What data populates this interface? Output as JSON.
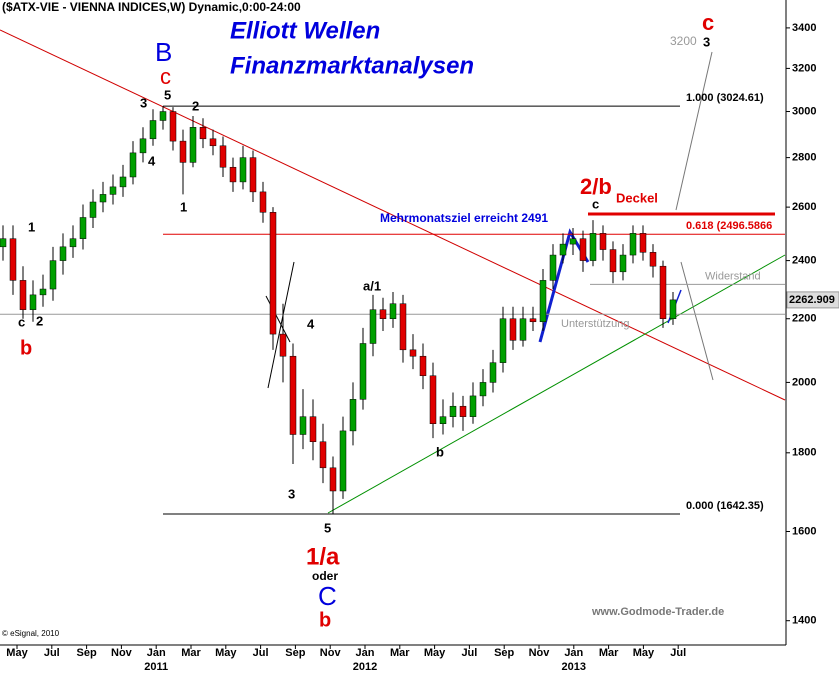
{
  "chart_data": {
    "type": "candlestick",
    "title": "($ATX-VIE - VIENNA INDICES,W) Dynamic,0:00-24:00",
    "source": "© eSignal, 2010",
    "watermark": "www.Godmode-Trader.de",
    "log_scale": true,
    "up_color": "#00a000",
    "down_color": "#e00000",
    "ylim": [
      1350,
      3545
    ],
    "yticks": [
      1400,
      1600,
      1800,
      2000,
      2200,
      2400,
      2600,
      2800,
      3000,
      3200,
      3400
    ],
    "xticks": [
      "May",
      "Jul",
      "Sep",
      "Nov",
      "Jan",
      "Mar",
      "May",
      "Jul",
      "Sep",
      "Nov",
      "Jan",
      "Mar",
      "May",
      "Jul",
      "Sep",
      "Nov",
      "Jan",
      "Mar",
      "May",
      "Jul"
    ],
    "years": [
      "2011",
      "2012",
      "2013"
    ],
    "last_price": 2262.909,
    "open": [
      2450,
      2480,
      2330,
      2230,
      2280,
      2300,
      2400,
      2450,
      2480,
      2560,
      2620,
      2650,
      2680,
      2720,
      2820,
      2880,
      2960,
      3000,
      2870,
      2780,
      2930,
      2880,
      2850,
      2760,
      2700,
      2800,
      2660,
      2580,
      2150,
      2080,
      1850,
      1900,
      1830,
      1760,
      1700,
      1860,
      1950,
      2120,
      2230,
      2200,
      2250,
      2100,
      2080,
      2020,
      1880,
      1900,
      1930,
      1900,
      1960,
      2000,
      2060,
      2200,
      2130,
      2200,
      2190,
      2330,
      2420,
      2460,
      2480,
      2400,
      2500,
      2440,
      2360,
      2420,
      2500,
      2430,
      2380,
      2200
    ],
    "high": [
      2530,
      2530,
      2380,
      2330,
      2350,
      2450,
      2500,
      2530,
      2610,
      2670,
      2700,
      2730,
      2770,
      2870,
      2930,
      3010,
      3024,
      3020,
      2920,
      2980,
      2970,
      2920,
      2890,
      2800,
      2850,
      2830,
      2700,
      2600,
      2250,
      2120,
      1980,
      1950,
      1880,
      1790,
      1900,
      2000,
      2170,
      2280,
      2270,
      2290,
      2280,
      2150,
      2120,
      2060,
      1950,
      1970,
      1960,
      2000,
      2040,
      2100,
      2240,
      2240,
      2240,
      2240,
      2370,
      2460,
      2500,
      2520,
      2510,
      2550,
      2530,
      2470,
      2460,
      2530,
      2530,
      2460,
      2400,
      2290
    ],
    "low": [
      2400,
      2280,
      2200,
      2190,
      2240,
      2260,
      2350,
      2410,
      2440,
      2520,
      2580,
      2610,
      2640,
      2690,
      2780,
      2850,
      2920,
      2830,
      2650,
      2760,
      2840,
      2810,
      2720,
      2660,
      2670,
      2620,
      2540,
      2100,
      2000,
      1770,
      1810,
      1780,
      1720,
      1642,
      1680,
      1820,
      1920,
      2080,
      2160,
      2170,
      2060,
      2040,
      1980,
      1840,
      1850,
      1870,
      1860,
      1880,
      1930,
      1970,
      2030,
      2100,
      2110,
      2160,
      2160,
      2300,
      2390,
      2420,
      2360,
      2380,
      2400,
      2320,
      2330,
      2390,
      2400,
      2340,
      2170,
      2180
    ],
    "close": [
      2480,
      2330,
      2230,
      2280,
      2300,
      2400,
      2450,
      2480,
      2560,
      2620,
      2650,
      2680,
      2720,
      2820,
      2880,
      2960,
      3000,
      2870,
      2780,
      2930,
      2880,
      2850,
      2760,
      2700,
      2800,
      2660,
      2580,
      2150,
      2080,
      1850,
      1900,
      1830,
      1760,
      1700,
      1860,
      1950,
      2120,
      2230,
      2200,
      2250,
      2100,
      2080,
      2020,
      1880,
      1900,
      1930,
      1900,
      1960,
      2000,
      2060,
      2200,
      2130,
      2200,
      2190,
      2330,
      2420,
      2460,
      2480,
      2400,
      2500,
      2440,
      2360,
      2420,
      2500,
      2430,
      2380,
      2200,
      2263
    ],
    "levels": [
      {
        "value": 3024.61,
        "label": "1.000 (3024.61)",
        "color": "#000000"
      },
      {
        "value": 2496.5866,
        "label": "0.618 (2496.5866",
        "color": "#e00000"
      },
      {
        "value": 1642.35,
        "label": "0.000 (1642.35)",
        "color": "#000000"
      },
      {
        "value": 2316,
        "label": "Widerstand",
        "color": "#999999"
      },
      {
        "value": 2215,
        "label": "Unterstützung",
        "color": "#999999"
      }
    ],
    "annotations": [
      {
        "text": "Elliott Wellen",
        "color": "#0000dd"
      },
      {
        "text": "Finanzmarktanalysen",
        "color": "#0000dd"
      },
      {
        "text": "B",
        "color": "#0000dd"
      },
      {
        "text": "c",
        "color": "#e00000"
      },
      {
        "text": "5",
        "color": "#000000"
      },
      {
        "text": "3",
        "color": "#000000"
      },
      {
        "text": "2",
        "color": "#000000"
      },
      {
        "text": "4",
        "color": "#000000"
      },
      {
        "text": "1",
        "color": "#000000"
      },
      {
        "text": "1",
        "color": "#000000"
      },
      {
        "text": "c",
        "color": "#000000"
      },
      {
        "text": "2",
        "color": "#000000"
      },
      {
        "text": "b",
        "color": "#e00000"
      },
      {
        "text": "a/1",
        "color": "#000000"
      },
      {
        "text": "4",
        "color": "#000000"
      },
      {
        "text": "3",
        "color": "#000000"
      },
      {
        "text": "5",
        "color": "#000000"
      },
      {
        "text": "1/a",
        "color": "#e00000"
      },
      {
        "text": "oder",
        "color": "#000000"
      },
      {
        "text": "C",
        "color": "#0000dd"
      },
      {
        "text": "b",
        "color": "#e00000"
      },
      {
        "text": "b",
        "color": "#000000"
      },
      {
        "text": "c",
        "color": "#000000"
      },
      {
        "text": "2/b",
        "color": "#e00000"
      },
      {
        "text": "Deckel",
        "color": "#e00000"
      },
      {
        "text": "Mehrmonatsziel erreicht 2491",
        "color": "#0000dd"
      },
      {
        "text": "3200",
        "color": "#999999"
      },
      {
        "text": "3",
        "color": "#000000"
      },
      {
        "text": "c",
        "color": "#e00000"
      }
    ]
  }
}
